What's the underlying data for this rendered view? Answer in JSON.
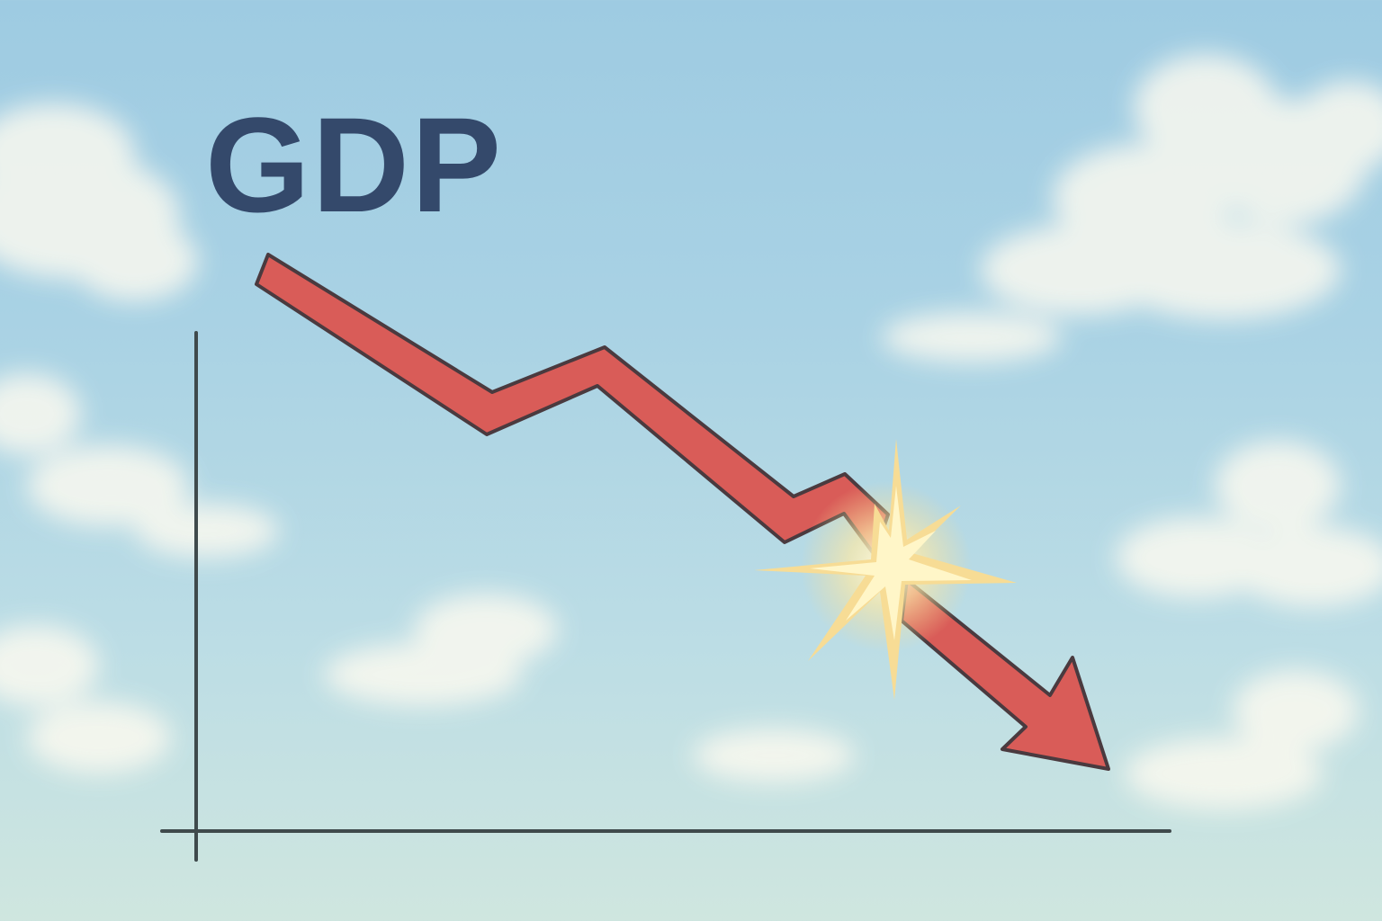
{
  "headline": {
    "text": "GDP"
  },
  "illustration": {
    "subject": "falling-trend-arrow",
    "arrow_icon": "downward-trend-arrow-icon",
    "burst_icon": "impact-burst-icon",
    "background": "sky-with-clouds"
  },
  "colors": {
    "title": "#34496b",
    "arrow_fill": "#d95c58",
    "arrow_stroke": "#4a3a3f",
    "axis": "#3f4a4c",
    "burst_core": "#fff6c8",
    "burst_ray": "#f7dc95",
    "cloud": "#fdfaf0",
    "sky_top": "#9ecbe2",
    "sky_bottom": "#cfe6df"
  }
}
